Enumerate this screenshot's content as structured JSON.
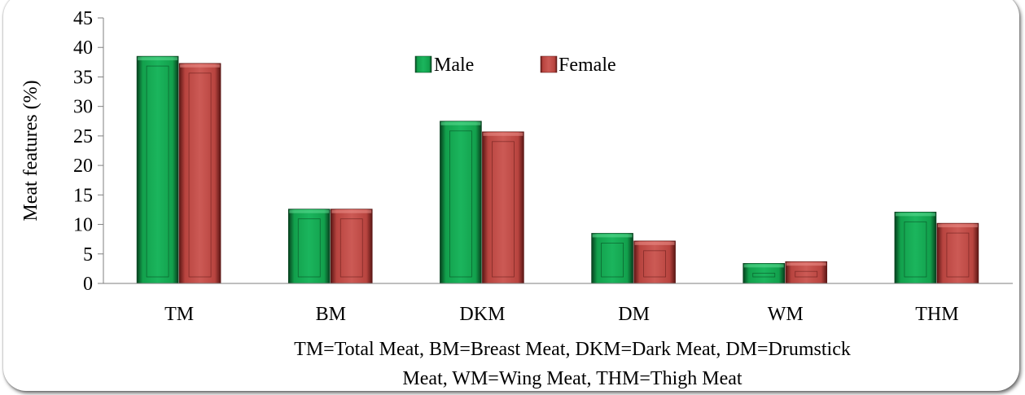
{
  "chart_data": {
    "type": "bar",
    "categories": [
      "TM",
      "BM",
      "DKM",
      "DM",
      "WM",
      "THM"
    ],
    "series": [
      {
        "name": "Male",
        "values": [
          38.5,
          12.6,
          27.5,
          8.5,
          3.4,
          12.1
        ],
        "color": "#1aa554"
      },
      {
        "name": "Female",
        "values": [
          37.3,
          12.6,
          25.7,
          7.2,
          3.7,
          10.2
        ],
        "color": "#c0504d"
      }
    ],
    "ylabel": "Meat features (%)",
    "ylim": [
      0,
      45
    ],
    "yticks": [
      "0",
      "5",
      "10",
      "15",
      "20",
      "25",
      "30",
      "35",
      "40",
      "45"
    ],
    "grid": false,
    "legend": "top-center",
    "note": [
      "TM=Total Meat, BM=Breast Meat, DKM=Dark Meat, DM=Drumstick",
      "Meat, WM=Wing Meat, THM=Thigh Meat"
    ]
  }
}
